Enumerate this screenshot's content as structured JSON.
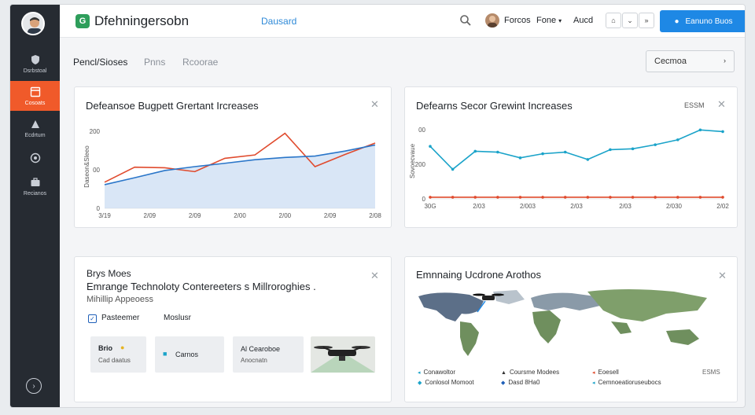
{
  "app": {
    "title": "Dfehningersobn",
    "logo_letter": "G",
    "top_link": "Dausard"
  },
  "topbar": {
    "user": "Forcos",
    "menu_a": "Fone",
    "menu_b": "Aucd",
    "primary_button": "Eanuno Buos"
  },
  "sidebar": {
    "items": [
      {
        "label": "Dsrbstoal",
        "icon": "shield-icon"
      },
      {
        "label": "Cosoats",
        "icon": "dashboard-icon"
      },
      {
        "label": "Ecdrtum",
        "icon": "chart-icon"
      },
      {
        "label": "",
        "icon": "globe-icon"
      },
      {
        "label": "Recianos",
        "icon": "briefcase-icon"
      }
    ]
  },
  "tabs": [
    "Pencl/Sioses",
    "Pnns",
    "Rcoorae"
  ],
  "filter": {
    "value": "Cecmoa"
  },
  "card1": {
    "title": "Defeansoe Bugpett Grertant Ircreases"
  },
  "card2": {
    "title": "Defearns Secor Grewint Increases",
    "badge": "ESSM"
  },
  "card3": {
    "line1": "Brys Moes",
    "line2": "Emrange Technoloty Contereeters s Millroroghies .",
    "line3": "Mihillip Appeoess",
    "check1": "Pasteemer",
    "check2": "Moslusr",
    "tiles": [
      {
        "t": "Brio",
        "s": "Cad daatus"
      },
      {
        "t": "Carnos",
        "s": ""
      },
      {
        "t": "Al Cearoboe",
        "s": "Anocnatn"
      }
    ]
  },
  "card4": {
    "title": "Emnnaing Ucdrone Arothos",
    "legend": [
      "Conawoltor",
      "Coursme Modees",
      "Eoesell",
      "Conlosol Momoot",
      "Dasd 8Ha0",
      "Cemnoeatioruseubocs"
    ],
    "legend_right": "ESMS"
  },
  "chart_data": [
    {
      "type": "line",
      "title": "Defeansoe Bugpett Grertant Ircreases",
      "ylabel": "Daseon&Sleeo",
      "x": [
        "2/09",
        "2/09",
        "2/09",
        "2/00",
        "2/00",
        "2/09",
        "2/09",
        "2/09",
        "2/09",
        "2/09"
      ],
      "xticks": [
        "3/19",
        "2/09",
        "2/09",
        "2/00",
        "2/00",
        "2/09",
        "2/08"
      ],
      "yticks": [
        "200",
        "00",
        "0"
      ],
      "series": [
        {
          "color": "#e04b2e",
          "values": [
            94,
            148,
            146,
            132,
            180,
            192,
            270,
            150,
            194,
            235
          ]
        },
        {
          "color": "#2a76c9",
          "values": [
            85,
            110,
            136,
            150,
            162,
            175,
            183,
            188,
            206,
            228
          ]
        }
      ],
      "ylim": [
        0,
        300
      ]
    },
    {
      "type": "line",
      "title": "Defearns Secor Grewint Increases",
      "ylabel": "Sovoecvaue",
      "xticks": [
        "30G",
        "2/03",
        "2/003",
        "2/03",
        "2/03",
        "2/030",
        "2/02"
      ],
      "yticks": [
        "00",
        "200",
        "0"
      ],
      "series": [
        {
          "color": "#1aa3c9",
          "values": [
            320,
            180,
            290,
            285,
            250,
            275,
            285,
            240,
            300,
            305,
            330,
            360,
            420,
            410
          ]
        },
        {
          "color": "#e04b2e",
          "values": [
            10,
            10,
            10,
            10,
            10,
            10,
            10,
            10,
            10,
            10,
            10,
            10,
            10,
            10
          ]
        }
      ],
      "ylim": [
        0,
        460
      ]
    }
  ]
}
